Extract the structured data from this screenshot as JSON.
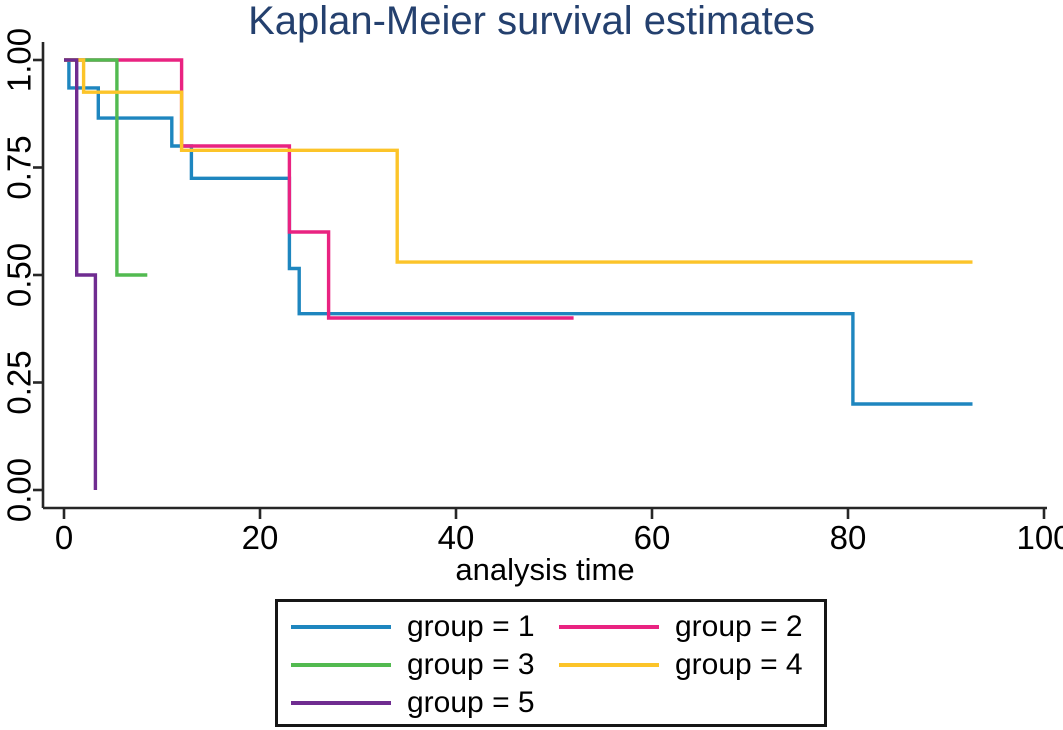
{
  "chart_data": {
    "type": "line",
    "subtype": "kaplan-meier-step",
    "title": "Kaplan-Meier survival estimates",
    "xlabel": "analysis time",
    "ylabel": "",
    "xlim": [
      0,
      100
    ],
    "ylim": [
      0.0,
      1.0
    ],
    "grid": false,
    "legend_position": "bottom-center",
    "x_ticks": [
      {
        "value": 0,
        "label": "0"
      },
      {
        "value": 20,
        "label": "20"
      },
      {
        "value": 40,
        "label": "40"
      },
      {
        "value": 60,
        "label": "60"
      },
      {
        "value": 80,
        "label": "80"
      },
      {
        "value": 100,
        "label": "100"
      }
    ],
    "y_ticks": [
      {
        "value": 0.0,
        "label": "0.00"
      },
      {
        "value": 0.25,
        "label": "0.25"
      },
      {
        "value": 0.5,
        "label": "0.50"
      },
      {
        "value": 0.75,
        "label": "0.75"
      },
      {
        "value": 1.0,
        "label": "1.00"
      }
    ],
    "series": [
      {
        "name": "group = 1",
        "color": "#1e86bf",
        "points": [
          [
            0,
            1.0
          ],
          [
            0.5,
            1.0
          ],
          [
            0.5,
            0.935
          ],
          [
            3.5,
            0.935
          ],
          [
            3.5,
            0.865
          ],
          [
            11,
            0.865
          ],
          [
            11,
            0.8
          ],
          [
            13,
            0.8
          ],
          [
            13,
            0.725
          ],
          [
            23,
            0.725
          ],
          [
            23,
            0.515
          ],
          [
            24,
            0.515
          ],
          [
            24,
            0.41
          ],
          [
            80.5,
            0.41
          ],
          [
            80.5,
            0.2
          ],
          [
            92.7,
            0.2
          ]
        ]
      },
      {
        "name": "group = 2",
        "color": "#e92381",
        "points": [
          [
            0,
            1.0
          ],
          [
            12,
            1.0
          ],
          [
            12,
            0.8
          ],
          [
            23,
            0.8
          ],
          [
            23,
            0.6
          ],
          [
            27,
            0.6
          ],
          [
            27,
            0.4
          ],
          [
            52,
            0.4
          ]
        ]
      },
      {
        "name": "group = 3",
        "color": "#52ba50",
        "points": [
          [
            0,
            1.0
          ],
          [
            5.4,
            1.0
          ],
          [
            5.4,
            0.5
          ],
          [
            8.5,
            0.5
          ]
        ]
      },
      {
        "name": "group = 4",
        "color": "#fcc429",
        "points": [
          [
            0,
            1.0
          ],
          [
            2,
            1.0
          ],
          [
            2,
            0.925
          ],
          [
            12,
            0.925
          ],
          [
            12,
            0.79
          ],
          [
            34,
            0.79
          ],
          [
            34,
            0.53
          ],
          [
            92.7,
            0.53
          ]
        ]
      },
      {
        "name": "group = 5",
        "color": "#6f2c90",
        "points": [
          [
            0,
            1.0
          ],
          [
            1.3,
            1.0
          ],
          [
            1.3,
            0.5
          ],
          [
            3.2,
            0.5
          ],
          [
            3.2,
            0.0
          ]
        ]
      }
    ],
    "colors": {
      "title_text": "#24406e",
      "axis": "#262626",
      "tick_text": "#000000",
      "legend_border": "#161616"
    }
  }
}
